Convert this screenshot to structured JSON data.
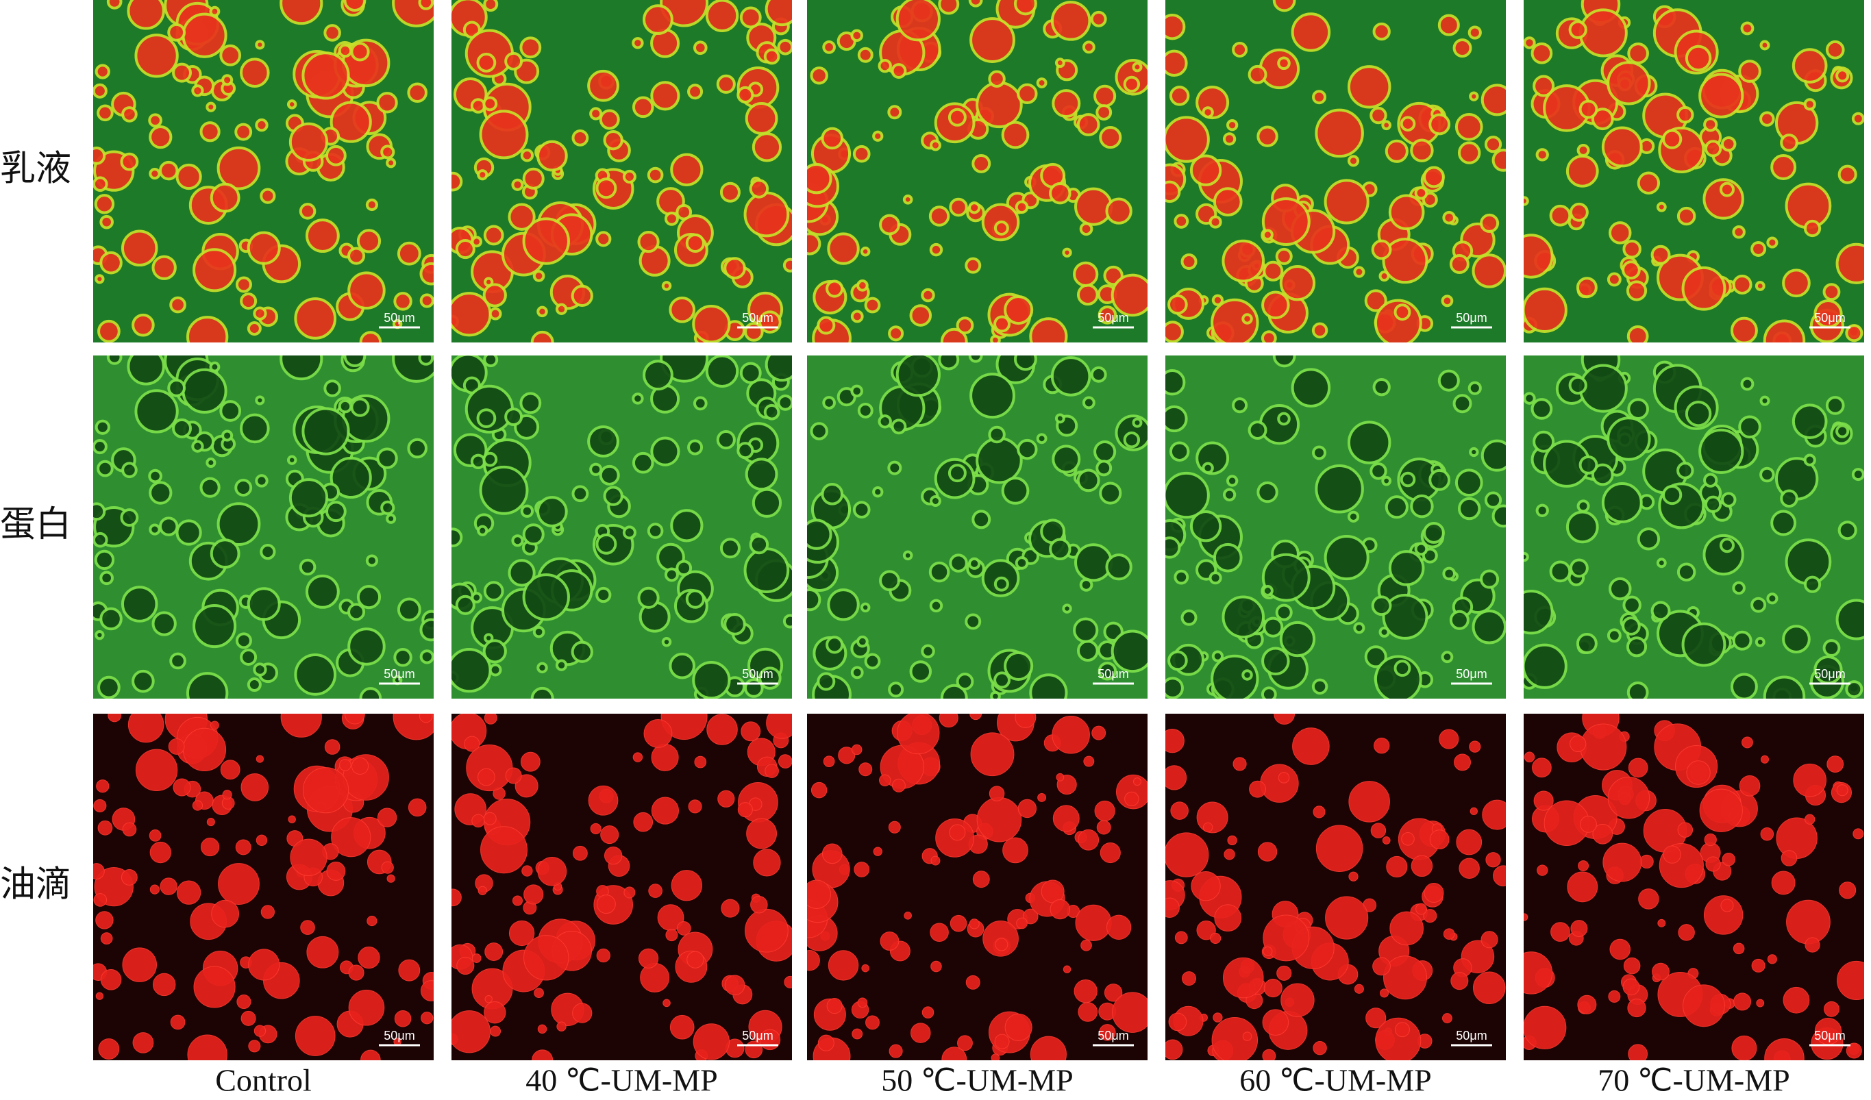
{
  "figure": {
    "row_labels": [
      "乳液",
      "蛋白",
      "油滴"
    ],
    "column_labels": [
      "Control",
      "40 ℃-UM-MP",
      "50 ℃-UM-MP",
      "60 ℃-UM-MP",
      "70 ℃-UM-MP"
    ],
    "scale_bar_label": "50μm"
  }
}
